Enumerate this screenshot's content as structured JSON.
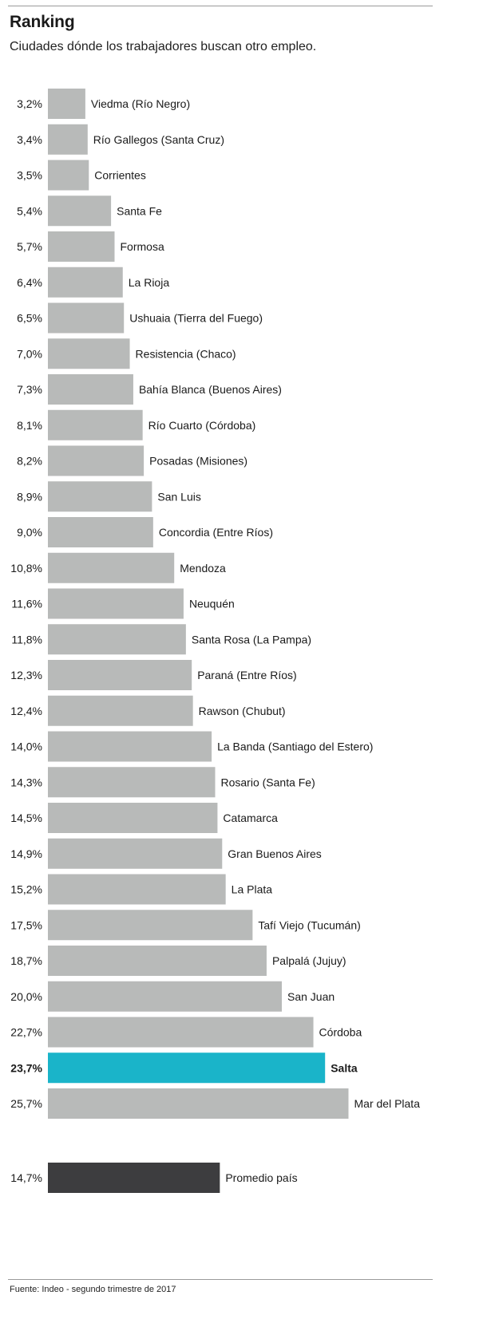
{
  "header": {
    "title": "Ranking",
    "subtitle": "Ciudades dónde los trabajadores buscan otro empleo."
  },
  "footer": {
    "source": "Fuente: Indeo - segundo trimestre de 2017"
  },
  "colors": {
    "bar": "#b8bab9",
    "highlight": "#1ab4c9",
    "average": "#3d3d3f",
    "text": "#1a1a1a"
  },
  "chart_data": {
    "type": "bar",
    "orientation": "horizontal",
    "title": "Ranking",
    "subtitle": "Ciudades dónde los trabajadores buscan otro empleo.",
    "xlabel": "",
    "ylabel": "",
    "grid": false,
    "legend": "none",
    "unit": "%",
    "categories": [
      "Viedma (Río Negro)",
      "Río Gallegos (Santa Cruz)",
      "Corrientes",
      "Santa Fe",
      "Formosa",
      "La Rioja",
      "Ushuaia (Tierra del Fuego)",
      "Resistencia (Chaco)",
      "Bahía Blanca (Buenos Aires)",
      "Río Cuarto (Córdoba)",
      "Posadas (Misiones)",
      "San Luis",
      "Concordia (Entre Ríos)",
      "Mendoza",
      "Neuquén",
      "Santa Rosa (La Pampa)",
      "Paraná (Entre Ríos)",
      "Rawson (Chubut)",
      "La Banda (Santiago del Estero)",
      "Rosario (Santa Fe)",
      "Catamarca",
      "Gran Buenos Aires",
      "La Plata",
      "Tafí Viejo (Tucumán)",
      "Palpalá (Jujuy)",
      "San Juan",
      "Córdoba",
      "Salta",
      "Mar del Plata"
    ],
    "values": [
      3.2,
      3.4,
      3.5,
      5.4,
      5.7,
      6.4,
      6.5,
      7.0,
      7.3,
      8.1,
      8.2,
      8.9,
      9.0,
      10.8,
      11.6,
      11.8,
      12.3,
      12.4,
      14.0,
      14.3,
      14.5,
      14.9,
      15.2,
      17.5,
      18.7,
      20.0,
      22.7,
      23.7,
      25.7
    ],
    "value_labels": [
      "3,2%",
      "3,4%",
      "3,5%",
      "5,4%",
      "5,7%",
      "6,4%",
      "6,5%",
      "7,0%",
      "7,3%",
      "8,1%",
      "8,2%",
      "8,9%",
      "9,0%",
      "10,8%",
      "11,6%",
      "11,8%",
      "12,3%",
      "12,4%",
      "14,0%",
      "14,3%",
      "14,5%",
      "14,9%",
      "15,2%",
      "17,5%",
      "18,7%",
      "20,0%",
      "22,7%",
      "23,7%",
      "25,7%"
    ],
    "highlight": "Salta",
    "average": {
      "label": "Promedio país",
      "value": 14.7,
      "value_label": "14,7%"
    }
  }
}
